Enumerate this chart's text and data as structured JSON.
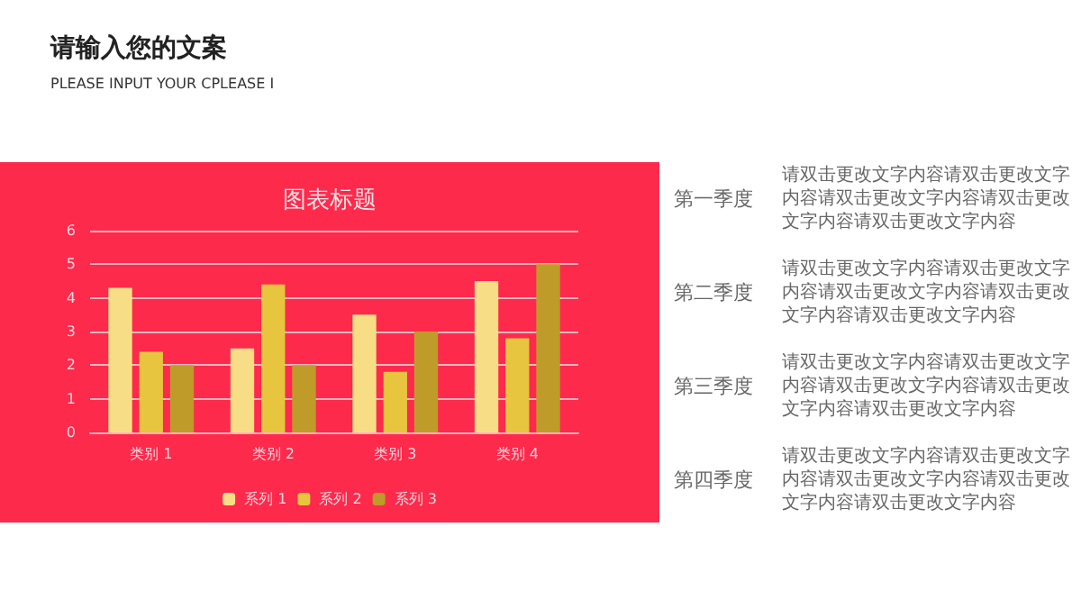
{
  "chart_data": [
    {
      "type": "other",
      "title": "请输入您的文案",
      "subtitle": "PLEASE INPUT YOUR CPLEASE I"
    },
    {
      "type": "bar",
      "title": "图表标题",
      "categories": [
        "类别 1",
        "类别 2",
        "类别 3",
        "类别 4"
      ],
      "series": [
        {
          "name": "系列 1",
          "color": "#f7de86",
          "values": [
            4.3,
            2.5,
            3.5,
            4.5
          ]
        },
        {
          "name": "系列 2",
          "color": "#e8c53e",
          "values": [
            2.4,
            4.4,
            1.8,
            2.8
          ]
        },
        {
          "name": "系列 3",
          "color": "#bf9b2a",
          "values": [
            2,
            2,
            3,
            5
          ]
        }
      ],
      "ylim": [
        0,
        6
      ],
      "yticks": [
        0,
        1,
        2,
        3,
        4,
        5,
        6
      ],
      "grid": "y",
      "legend": "bottom"
    },
    {
      "type": "other",
      "annotations": [
        "第一季度",
        "请双击更改文字内容请双击更改文字内容请双击更改文字内容请双击更改文字内容请双击更改文字内容",
        "第二季度",
        "请双击更改文字内容请双击更改文字内容请双击更改文字内容请双击更改文字内容请双击更改文字内容",
        "第三季度",
        "请双击更改文字内容请双击更改文字内容请双击更改文字内容请双击更改文字内容请双击更改文字内容",
        "第四季度",
        "请双击更改文字内容请双击更改文字内容请双击更改文字内容请双击更改文字内容请双击更改文字内容"
      ]
    }
  ]
}
